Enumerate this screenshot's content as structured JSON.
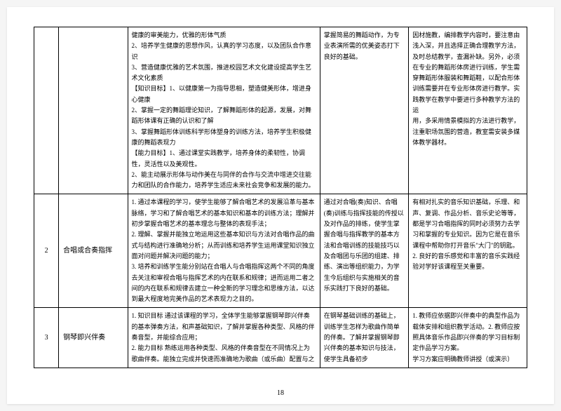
{
  "page_number": "18",
  "layout": {
    "col_widths_pct": [
      5,
      14,
      39,
      18,
      24
    ],
    "border_color": "#000000",
    "background": "#ffffff",
    "font_size_cell": 9,
    "font_size_num": 10,
    "line_height": 1.7
  },
  "rows": [
    {
      "num": "",
      "name": "",
      "c3": "健康的审美能力，优雅的形体气质\n2、培养学生健康的思想作风，认真的学习态度，以及团队合作意识\n3、营造健康优雅的艺术氛围，推进校园艺术文化建设提高学生艺术文化素质\n【知识目标】1、以健康第一为指导思相，塑造健美形体，增进身心健康\n2、掌握一定的舞蹈理论知识，了解舞蹈形体的起源，发展，对舞蹈形体课有正确的认识和了解\n3、掌握舞蹈形体训练科学形体塑身的训练方法，培养学生积极健康的舞蹈表现力\n【能力目标】1、通过课堂实践教学，培养身体的柔韧性，协调性，灵活性以及美观性。\n2、能主动展示形体与动作美在与同伴的合作与交流中增进交往能力和团队的合作能力，培养学生适应未来社会竞争和发展的能力。",
      "c4": "掌握简易的舞蹈动作，为专业表演所需的优美姿态打下良好的基础。",
      "c5": "因材施教，编排教学内容时，要注意由浅入深，并且选择正确合理教学方法，及时总结教学，查漏补缺。另外，必须在专业的舞蹈形体房进行训练，学生需穿舞蹈形体服装和舞蹈鞋，以配合形体训练需要并在专业形体房进行教学。实践教学在教学中要进行多种教学方法的运\n用，多采用情景模拟的方法进行教学，注重职场氛围的营造，教室需安装多媒体教学器材。"
    },
    {
      "num": "2",
      "name": "合唱或合奏指挥",
      "c3": "1. 通过本课程的学习，使学生能够了解合唱艺术的发展沿革与基本脉络，学习和了解合唱艺术的基本知识和基本的训练方法；理解并初步掌握合唱艺术的基本理念与整体的表现手法；\n2. 理解、掌握并能独立地运用这些基本知识与方法对合唱作品的曲式与结构进行准确地分析；从而训练和培养学生运用课堂知识独立面对问题并解决问题的能力；\n3. 培养和训练学生能分别站在合唱人与合唱指挥这两个不同的角度去关注和审视合唱与指挥艺术的内在联系和规律；进而运用二者之间的内在联系和规律去建立一种全新的学习理念和思维方法，以达到最大程度地完美作品的艺术表现力之目的。",
      "c4": "通过对合唱(奏)知识、合唱(奏)训练与指挥技能的传授以及对作品的排练，使学生掌握合唱与指挥教学的基本方法和合唱训练的技能技巧以及合唱团与乐团的组建、排练、演出等组织能力，为学生今后组织与实施相关的音乐实践打下良好的基础。",
      "c5": "有相对扎实的音乐知识基础，乐理、和声、复调、作品分析、音乐史论等等，都是学习合唱指挥的同时必须努力去学习和掌握的专业知识。因为它是在音乐课程中帮助你打开音乐\"大门\"的钥匙。\n2. 良好的音乐感觉和丰富的音乐实践经验对学好该课程至关重要。"
    },
    {
      "num": "3",
      "name": "钢琴即兴伴奏",
      "c3": "1. 知识目标 通过该课程的学习，全体学生能够掌握钢琴即兴伴奏的基本弹奏方法，和声基础知识，了解并掌握各种类型、风格的伴奏音型，并能综合应用；\n2. 能力目标 熟练运用各种类型、风格的伴奏音型在不同情况上为歌曲伴奏。能独立完成并快速而准确地为歌曲（或乐曲）配置与之",
      "c4": "在钢琴基础训练的基础上，训练学生怎样为歌曲作简单的伴奏。了解并掌握钢琴即兴伴奏的基本知识与技法，使学生具备初步",
      "c5": "1. 教师应依据即兴伴奏中的典型作品为载体安排和组织教学活动。2. 教师应按照具体音乐作品即兴伴奏的学习目标制定作品学习方案。\n学习方案应明确教师讲授（或演示）"
    }
  ]
}
